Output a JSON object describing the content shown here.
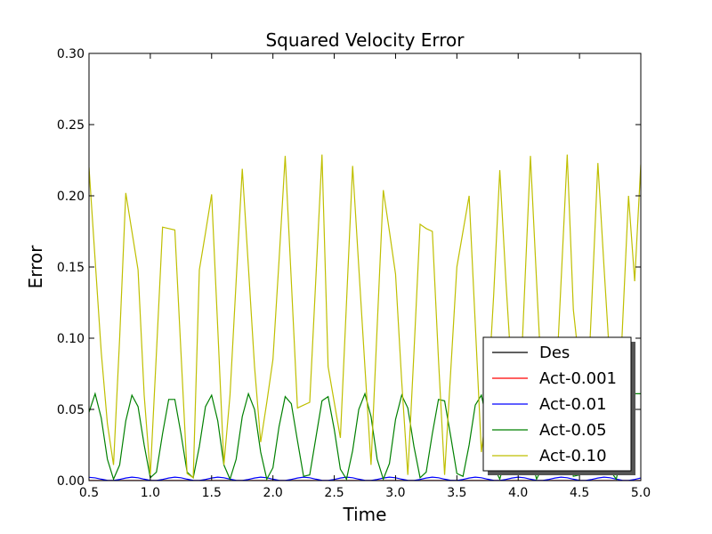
{
  "chart_data": {
    "type": "line",
    "title": "Squared Velocity Error",
    "xlabel": "Time",
    "ylabel": "Error",
    "xlim": [
      0.5,
      5.0
    ],
    "ylim": [
      0.0,
      0.3
    ],
    "xticks": [
      "0.5",
      "1.0",
      "1.5",
      "2.0",
      "2.5",
      "3.0",
      "3.5",
      "4.0",
      "4.5",
      "5.0"
    ],
    "yticks": [
      "0.00",
      "0.05",
      "0.10",
      "0.15",
      "0.20",
      "0.25",
      "0.30"
    ],
    "grid": false,
    "legend_position": "lower-right",
    "x": [
      0.5,
      0.55,
      0.6,
      0.65,
      0.7,
      0.75,
      0.8,
      0.85,
      0.9,
      0.95,
      1.0,
      1.05,
      1.1,
      1.15,
      1.2,
      1.25,
      1.3,
      1.35,
      1.4,
      1.45,
      1.5,
      1.55,
      1.6,
      1.65,
      1.7,
      1.75,
      1.8,
      1.85,
      1.9,
      1.95,
      2.0,
      2.05,
      2.1,
      2.15,
      2.2,
      2.25,
      2.3,
      2.35,
      2.4,
      2.45,
      2.5,
      2.55,
      2.6,
      2.65,
      2.7,
      2.75,
      2.8,
      2.85,
      2.9,
      2.95,
      3.0,
      3.05,
      3.1,
      3.15,
      3.2,
      3.25,
      3.3,
      3.35,
      3.4,
      3.45,
      3.5,
      3.55,
      3.6,
      3.65,
      3.7,
      3.75,
      3.8,
      3.85,
      3.9,
      3.95,
      4.0,
      4.05,
      4.1,
      4.15,
      4.2,
      4.25,
      4.3,
      4.35,
      4.4,
      4.45,
      4.5,
      4.55,
      4.6,
      4.65,
      4.7,
      4.75,
      4.8,
      4.85,
      4.9,
      4.95,
      5.0
    ],
    "series": [
      {
        "name": "Des",
        "color": "#000000",
        "values": [
          0,
          0,
          0,
          0,
          0,
          0,
          0,
          0,
          0,
          0,
          0,
          0,
          0,
          0,
          0,
          0,
          0,
          0,
          0,
          0,
          0,
          0,
          0,
          0,
          0,
          0,
          0,
          0,
          0,
          0,
          0,
          0,
          0,
          0,
          0,
          0,
          0,
          0,
          0,
          0,
          0,
          0,
          0,
          0,
          0,
          0,
          0,
          0,
          0,
          0,
          0,
          0,
          0,
          0,
          0,
          0,
          0,
          0,
          0,
          0,
          0,
          0,
          0,
          0,
          0,
          0,
          0,
          0,
          0,
          0,
          0,
          0,
          0,
          0,
          0,
          0,
          0,
          0,
          0,
          0,
          0,
          0,
          0,
          0,
          0,
          0,
          0,
          0,
          0,
          0,
          0
        ]
      },
      {
        "name": "Act-0.001",
        "color": "#ff0000",
        "values": [
          0,
          0,
          0,
          0,
          0,
          0,
          0,
          0,
          0,
          0,
          0,
          0,
          0,
          0,
          0,
          0,
          0,
          0,
          0,
          0,
          0,
          0,
          0,
          0,
          0,
          0,
          0,
          0,
          0,
          0,
          0,
          0,
          0,
          0,
          0,
          0,
          0,
          0,
          0,
          0,
          0,
          0,
          0,
          0,
          0,
          0,
          0,
          0,
          0,
          0,
          0,
          0,
          0,
          0,
          0,
          0,
          0,
          0,
          0,
          0,
          0,
          0,
          0,
          0,
          0,
          0,
          0,
          0,
          0,
          0,
          0,
          0,
          0,
          0,
          0,
          0,
          0,
          0,
          0,
          0,
          0,
          0,
          0,
          0,
          0,
          0,
          0,
          0,
          0,
          0,
          0
        ]
      },
      {
        "name": "Act-0.01",
        "color": "#0000ff",
        "values": [
          0.0023,
          0.0019,
          0.001,
          0.0002,
          0.0001,
          0.0008,
          0.0018,
          0.0024,
          0.002,
          0.001,
          0.0002,
          0.0001,
          0.0008,
          0.0018,
          0.0024,
          0.002,
          0.001,
          0.0002,
          0.0001,
          0.0008,
          0.0018,
          0.0024,
          0.002,
          0.001,
          0.0002,
          0.0001,
          0.0008,
          0.0018,
          0.0024,
          0.002,
          0.001,
          0.0002,
          0.0001,
          0.0008,
          0.0018,
          0.0024,
          0.002,
          0.001,
          0.0002,
          0.0001,
          0.0008,
          0.0018,
          0.0024,
          0.002,
          0.001,
          0.0002,
          0.0001,
          0.0008,
          0.0018,
          0.0024,
          0.002,
          0.001,
          0.0002,
          0.0001,
          0.0008,
          0.0018,
          0.0024,
          0.002,
          0.001,
          0.0002,
          0.0001,
          0.0008,
          0.0018,
          0.0024,
          0.002,
          0.001,
          0.0002,
          0.0001,
          0.0008,
          0.0018,
          0.0024,
          0.002,
          0.001,
          0.0002,
          0.0001,
          0.0008,
          0.0018,
          0.0024,
          0.002,
          0.001,
          0.0002,
          0.0001,
          0.0008,
          0.0018,
          0.0024,
          0.002,
          0.001,
          0.0002,
          0.0001,
          0.0008,
          0.0018
        ]
      },
      {
        "name": "Act-0.05",
        "color": "#008000",
        "values": [
          0.048,
          0.061,
          0.044,
          0.015,
          0.001,
          0.011,
          0.042,
          0.06,
          0.052,
          0.025,
          0.002,
          0.006,
          0.033,
          0.057,
          0.057,
          0.033,
          0.006,
          0.002,
          0.024,
          0.052,
          0.06,
          0.042,
          0.011,
          0.001,
          0.015,
          0.045,
          0.061,
          0.05,
          0.02,
          0.001,
          0.009,
          0.038,
          0.059,
          0.054,
          0.028,
          0.003,
          0.004,
          0.03,
          0.056,
          0.059,
          0.036,
          0.008,
          0.001,
          0.021,
          0.05,
          0.061,
          0.045,
          0.015,
          0.001,
          0.012,
          0.043,
          0.06,
          0.051,
          0.024,
          0.002,
          0.006,
          0.033,
          0.057,
          0.056,
          0.031,
          0.005,
          0.003,
          0.025,
          0.053,
          0.06,
          0.04,
          0.01,
          0.001,
          0.017,
          0.046,
          0.061,
          0.048,
          0.018,
          0.001,
          0.01,
          0.04,
          0.06,
          0.053,
          0.027,
          0.003,
          0.004,
          0.029,
          0.055,
          0.058,
          0.035,
          0.007,
          0.001,
          0.021,
          0.05,
          0.061,
          0.061
        ]
      },
      {
        "name": "Act-0.10",
        "color": "#bfbf00",
        "values": [
          0.22,
          0.155,
          0.09,
          0.04,
          0.011,
          0.1,
          0.202,
          0.175,
          0.148,
          0.06,
          0.004,
          0.09,
          0.178,
          0.177,
          0.176,
          0.09,
          0.005,
          0.002,
          0.148,
          0.174,
          0.201,
          0.107,
          0.011,
          0.06,
          0.14,
          0.219,
          0.15,
          0.08,
          0.027,
          0.055,
          0.085,
          0.155,
          0.228,
          0.14,
          0.051,
          0.053,
          0.055,
          0.142,
          0.229,
          0.08,
          0.055,
          0.03,
          0.125,
          0.221,
          0.15,
          0.08,
          0.011,
          0.108,
          0.204,
          0.175,
          0.145,
          0.07,
          0.004,
          0.09,
          0.18,
          0.177,
          0.175,
          0.085,
          0.004,
          0.077,
          0.15,
          0.175,
          0.2,
          0.11,
          0.02,
          0.055,
          0.13,
          0.218,
          0.14,
          0.07,
          0.03,
          0.129,
          0.228,
          0.14,
          0.055,
          0.045,
          0.052,
          0.14,
          0.229,
          0.12,
          0.08,
          0.03,
          0.125,
          0.223,
          0.15,
          0.08,
          0.011,
          0.107,
          0.2,
          0.14,
          0.222
        ]
      }
    ]
  }
}
